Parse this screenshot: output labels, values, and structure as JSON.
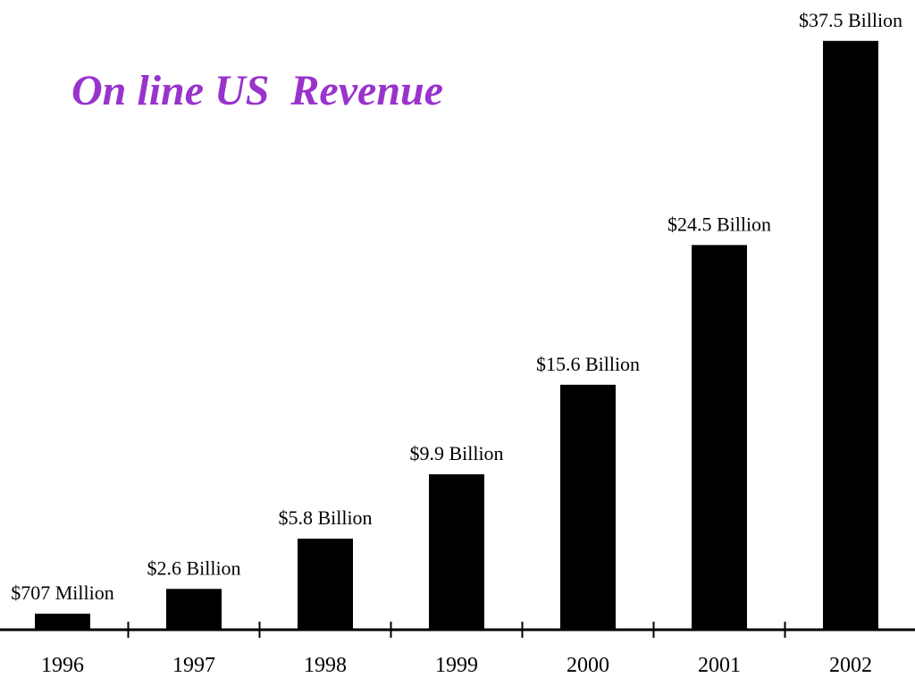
{
  "chart_data": {
    "type": "bar",
    "title": "On line US  Revenue",
    "xlabel": "",
    "ylabel": "",
    "categories": [
      "1996",
      "1997",
      "1998",
      "1999",
      "2000",
      "2001",
      "2002"
    ],
    "values": [
      0.707,
      2.6,
      5.8,
      9.9,
      15.6,
      24.5,
      37.5
    ],
    "data_labels": [
      "$707 Million",
      "$2.6 Billion",
      "$5.8 Billion",
      "$9.9 Billion",
      "$15.6 Billion",
      "$24.5 Billion",
      "$37.5 Billion"
    ],
    "units": "Billion USD",
    "ylim": [
      0,
      38
    ],
    "grid": false,
    "legend": "none",
    "colors": {
      "bars": "#000000",
      "title": "#9933cc",
      "axis": "#000000"
    }
  }
}
